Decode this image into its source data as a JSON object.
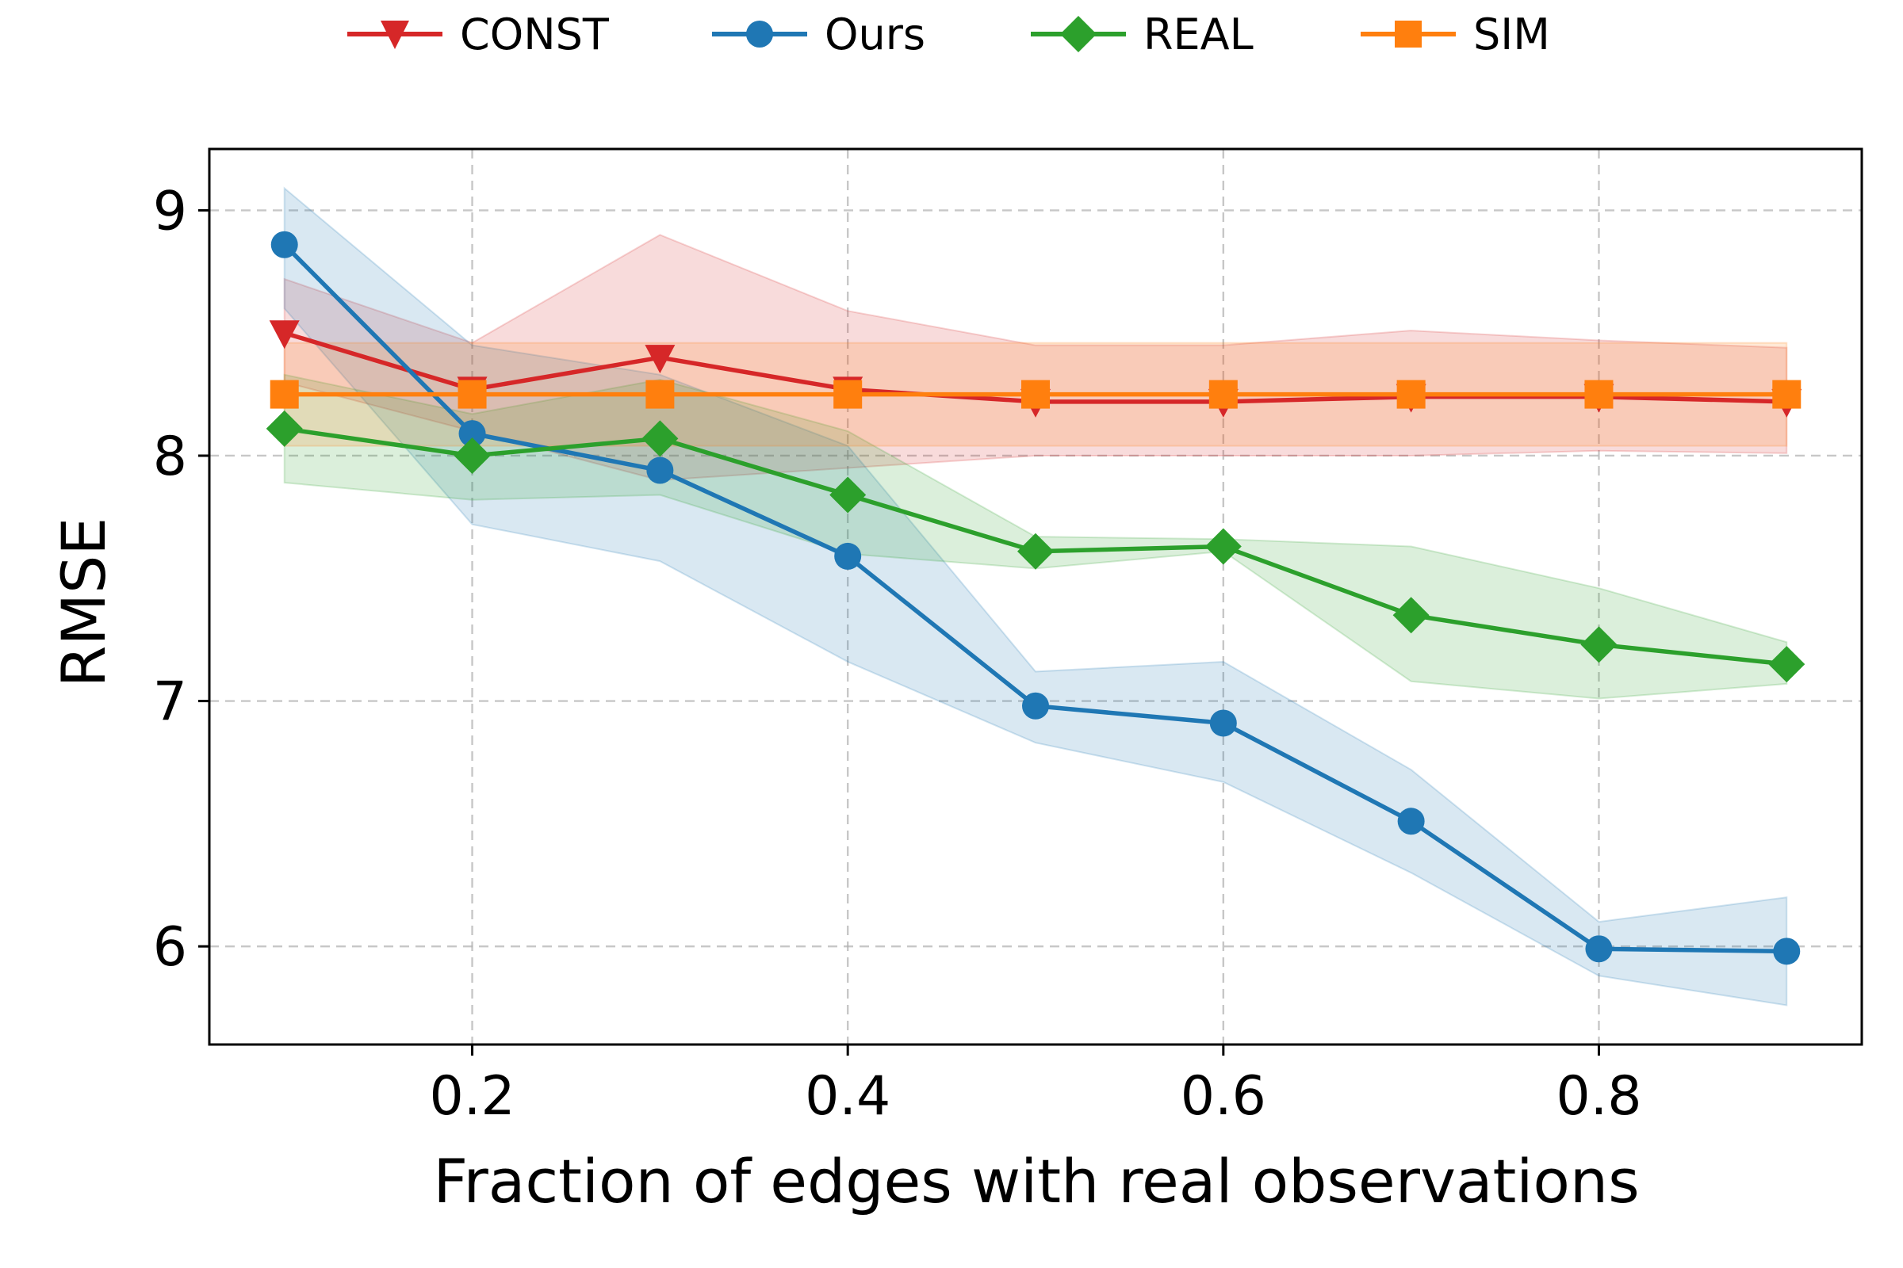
{
  "chart_data": {
    "type": "line",
    "title": "",
    "xlabel": "Fraction of edges with real observations",
    "ylabel": "RMSE",
    "xlim": [
      0.06,
      0.94
    ],
    "ylim": [
      5.6,
      9.25
    ],
    "xticks": [
      0.2,
      0.4,
      0.6,
      0.8
    ],
    "xtick_labels": [
      "0.2",
      "0.4",
      "0.6",
      "0.8"
    ],
    "yticks": [
      6,
      7,
      8,
      9
    ],
    "ytick_labels": [
      "6",
      "7",
      "8",
      "9"
    ],
    "grid": true,
    "legend_position": "top-center",
    "x": [
      0.1,
      0.2,
      0.3,
      0.4,
      0.5,
      0.6,
      0.7,
      0.8,
      0.9
    ],
    "series": [
      {
        "name": "CONST",
        "color": "#d62728",
        "marker": "triangle-down",
        "values": [
          8.5,
          8.27,
          8.4,
          8.27,
          8.22,
          8.22,
          8.24,
          8.24,
          8.22
        ],
        "lower": [
          8.3,
          8.1,
          7.9,
          7.95,
          8.0,
          8.0,
          8.0,
          8.02,
          8.01
        ],
        "upper": [
          8.72,
          8.46,
          8.9,
          8.59,
          8.45,
          8.45,
          8.51,
          8.47,
          8.44
        ]
      },
      {
        "name": "Ours",
        "color": "#1f77b4",
        "marker": "circle",
        "values": [
          8.86,
          8.09,
          7.94,
          7.59,
          6.98,
          6.91,
          6.51,
          5.99,
          5.98
        ],
        "lower": [
          8.6,
          7.72,
          7.57,
          7.16,
          6.83,
          6.67,
          6.3,
          5.88,
          5.76
        ],
        "upper": [
          9.09,
          8.45,
          8.33,
          8.04,
          7.12,
          7.16,
          6.72,
          6.1,
          6.2
        ]
      },
      {
        "name": "REAL",
        "color": "#2ca02c",
        "marker": "diamond",
        "values": [
          8.11,
          8.0,
          8.07,
          7.84,
          7.61,
          7.63,
          7.35,
          7.23,
          7.15
        ],
        "lower": [
          7.89,
          7.82,
          7.84,
          7.6,
          7.54,
          7.61,
          7.08,
          7.01,
          7.07
        ],
        "upper": [
          8.33,
          8.17,
          8.31,
          8.1,
          7.67,
          7.66,
          7.63,
          7.46,
          7.24
        ]
      },
      {
        "name": "SIM",
        "color": "#ff7f0e",
        "marker": "square",
        "values": [
          8.25,
          8.25,
          8.25,
          8.25,
          8.25,
          8.25,
          8.25,
          8.25,
          8.25
        ],
        "lower": [
          8.04,
          8.04,
          8.04,
          8.04,
          8.04,
          8.04,
          8.04,
          8.04,
          8.04
        ],
        "upper": [
          8.46,
          8.46,
          8.46,
          8.46,
          8.46,
          8.46,
          8.46,
          8.46,
          8.46
        ]
      }
    ]
  }
}
